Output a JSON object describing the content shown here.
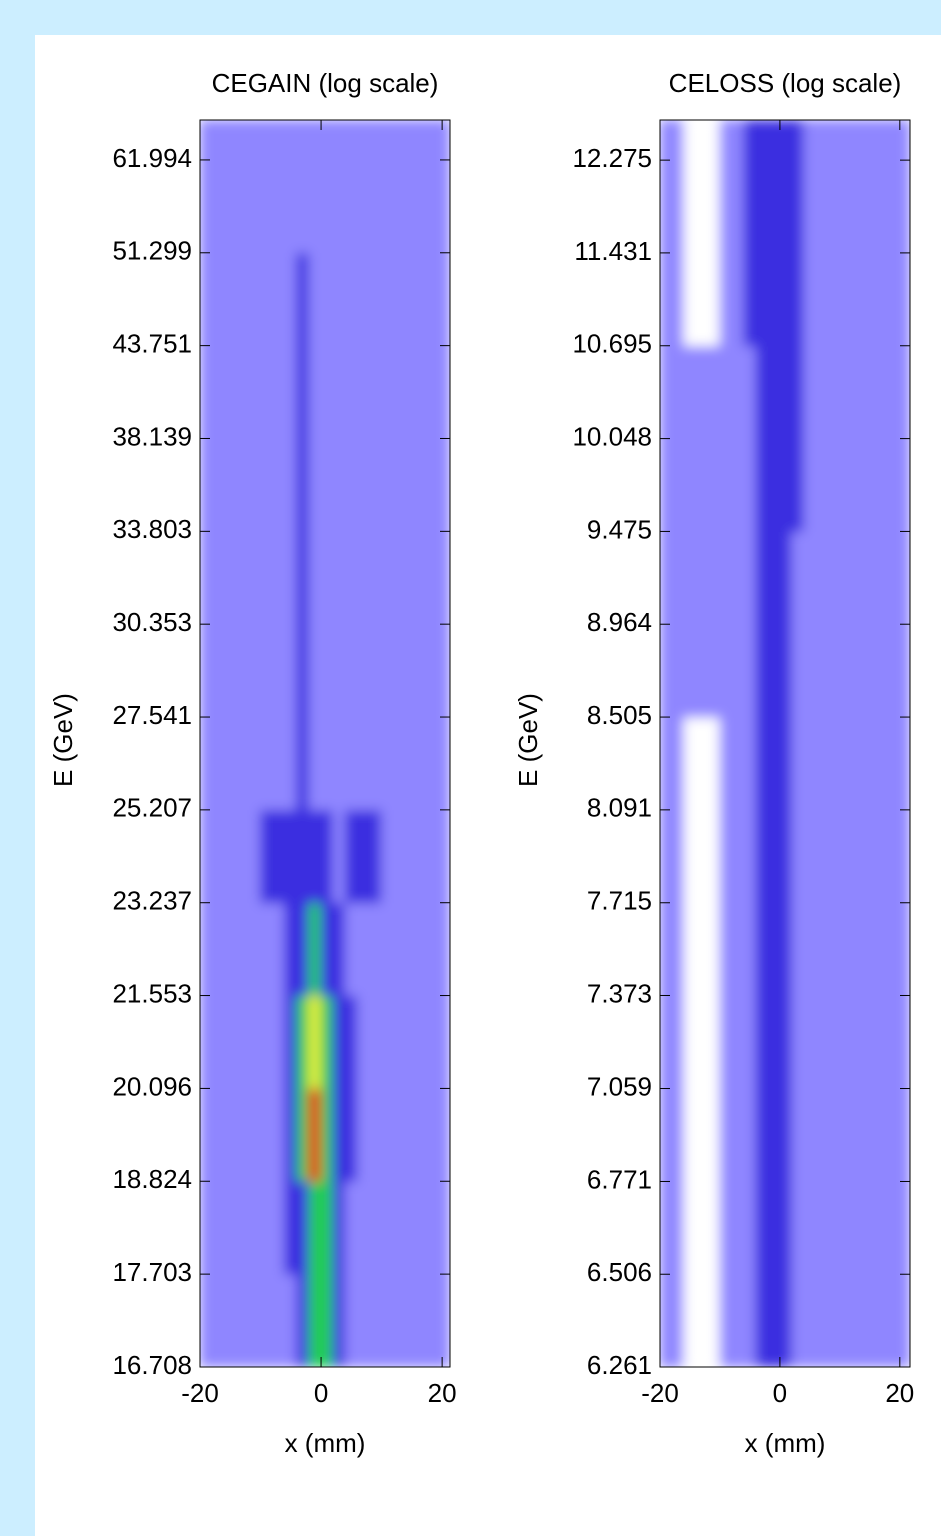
{
  "chart_data": [
    {
      "type": "heatmap",
      "title": "CEGAIN (log scale)",
      "xlabel": "x (mm)",
      "ylabel": "E (GeV)",
      "xlim": [
        -20,
        21.3
      ],
      "xticks": [
        -20,
        0,
        20
      ],
      "ylim": [
        16.708,
        68.1
      ],
      "yscale": "reciprocal",
      "yticks": [
        16.708,
        17.703,
        18.824,
        20.096,
        21.553,
        23.237,
        25.207,
        27.541,
        30.353,
        33.803,
        38.139,
        43.751,
        51.299,
        61.994
      ],
      "colors": [
        "#ffffff",
        "#8f86ff",
        "#3a2fe0",
        "#22cc55",
        "#e8f03a",
        "#ee0000"
      ],
      "x_edges": [
        -20,
        -10,
        -6,
        -4,
        -2,
        0,
        2,
        4,
        6,
        10,
        21.3
      ],
      "y_edges": [
        16.708,
        17.703,
        18.824,
        20.096,
        21.553,
        23.237,
        25.207,
        27.541,
        30.353,
        33.803,
        38.139,
        43.751,
        51.299,
        61.994,
        68.1
      ],
      "z": [
        [
          1,
          1,
          1,
          2,
          3,
          3,
          2,
          1,
          1,
          1
        ],
        [
          1,
          1,
          2,
          2,
          3,
          3,
          2,
          1,
          1,
          1
        ],
        [
          1,
          1,
          2,
          3,
          5,
          3,
          2,
          2,
          1,
          1
        ],
        [
          1,
          1,
          2,
          3,
          4,
          3,
          2,
          2,
          1,
          1
        ],
        [
          1,
          1,
          2,
          2,
          3,
          2,
          2,
          1,
          1,
          1
        ],
        [
          1,
          2,
          2,
          2,
          2,
          2,
          1,
          2,
          2,
          1
        ],
        [
          1,
          1,
          1,
          2,
          1,
          1,
          1,
          1,
          1,
          1
        ],
        [
          1,
          1,
          1,
          2,
          1,
          1,
          1,
          1,
          1,
          1
        ],
        [
          1,
          1,
          1,
          2,
          1,
          1,
          1,
          1,
          1,
          1
        ],
        [
          1,
          1,
          1,
          2,
          1,
          1,
          1,
          1,
          1,
          1
        ],
        [
          1,
          1,
          1,
          2,
          1,
          1,
          1,
          1,
          1,
          1
        ],
        [
          1,
          1,
          1,
          2,
          1,
          1,
          1,
          1,
          1,
          1
        ],
        [
          1,
          1,
          1,
          1,
          1,
          1,
          1,
          1,
          1,
          1
        ],
        [
          1,
          1,
          1,
          1,
          1,
          1,
          1,
          1,
          1,
          1
        ]
      ]
    },
    {
      "type": "heatmap",
      "title": "CELOSS (log scale)",
      "xlabel": "x (mm)",
      "ylabel": "E (GeV)",
      "xlim": [
        -20,
        21.7
      ],
      "xticks": [
        -20,
        0,
        20
      ],
      "ylim": [
        6.261,
        12.68
      ],
      "yscale": "reciprocal",
      "yticks": [
        6.261,
        6.506,
        6.771,
        7.059,
        7.373,
        7.715,
        8.091,
        8.505,
        8.964,
        9.475,
        10.048,
        10.695,
        11.431,
        12.275
      ],
      "colors": [
        "#ffffff",
        "#8f86ff",
        "#3a2fe0",
        "#22cc55",
        "#e8f03a",
        "#ee0000"
      ],
      "x_edges": [
        -20,
        -16,
        -10,
        -6,
        -4,
        -2,
        0,
        2,
        4,
        6,
        10,
        21.7
      ],
      "y_edges": [
        6.261,
        6.506,
        6.771,
        7.059,
        7.373,
        7.715,
        8.091,
        8.505,
        8.964,
        9.475,
        10.048,
        10.695,
        11.431,
        12.275,
        12.68
      ],
      "z": [
        [
          1,
          0,
          1,
          1,
          2,
          2,
          2,
          1,
          1,
          1,
          1
        ],
        [
          1,
          0,
          1,
          1,
          2,
          2,
          2,
          1,
          1,
          1,
          1
        ],
        [
          1,
          0,
          1,
          1,
          2,
          2,
          2,
          1,
          1,
          1,
          1
        ],
        [
          1,
          0,
          1,
          1,
          2,
          2,
          2,
          1,
          1,
          1,
          1
        ],
        [
          1,
          0,
          1,
          1,
          2,
          2,
          2,
          1,
          1,
          1,
          1
        ],
        [
          1,
          0,
          1,
          1,
          2,
          2,
          2,
          1,
          1,
          1,
          1
        ],
        [
          1,
          0,
          1,
          1,
          2,
          2,
          2,
          1,
          1,
          1,
          1
        ],
        [
          1,
          1,
          1,
          1,
          2,
          2,
          2,
          1,
          1,
          1,
          1
        ],
        [
          1,
          1,
          1,
          1,
          2,
          2,
          2,
          1,
          1,
          1,
          1
        ],
        [
          1,
          1,
          1,
          1,
          2,
          2,
          2,
          2,
          1,
          1,
          1
        ],
        [
          1,
          1,
          1,
          1,
          2,
          2,
          2,
          2,
          1,
          1,
          1
        ],
        [
          1,
          0,
          1,
          2,
          2,
          2,
          2,
          2,
          1,
          1,
          1
        ],
        [
          1,
          0,
          1,
          2,
          2,
          2,
          2,
          2,
          1,
          1,
          1
        ],
        [
          1,
          0,
          1,
          2,
          2,
          2,
          2,
          2,
          1,
          1,
          1
        ]
      ]
    }
  ]
}
